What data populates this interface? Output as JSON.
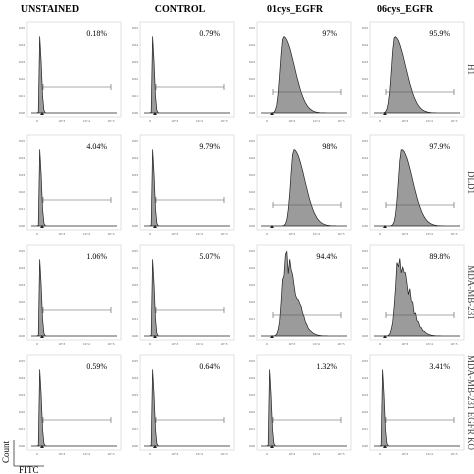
{
  "chart_data": {
    "type": "histogram-grid",
    "columns": [
      "UNSTAINED",
      "CONTROL",
      "01cys_EGFR",
      "06cys_EGFR"
    ],
    "rows": [
      {
        "label": "H1",
        "values": [
          "0.18%",
          "0.79%",
          "97%",
          "95.9%"
        ]
      },
      {
        "label": "DLD1",
        "values": [
          "4.04%",
          "9.79%",
          "98%",
          "97.9%"
        ]
      },
      {
        "label": "MDA-MB-231",
        "values": [
          "1.06%",
          "5.07%",
          "94.4%",
          "89.8%"
        ]
      },
      {
        "label": "MDA-MB-231 EGFR KO",
        "values": [
          "0.59%",
          "0.64%",
          "1.32%",
          "3.41%"
        ]
      }
    ],
    "peak_positions": [
      [
        0.1,
        0.1,
        0.26,
        0.24
      ],
      [
        0.1,
        0.1,
        0.38,
        0.32
      ],
      [
        0.1,
        0.1,
        0.28,
        0.28
      ],
      [
        0.1,
        0.1,
        0.1,
        0.1
      ]
    ],
    "ylabel": "Count",
    "xlabel": "FITC",
    "y_ticks": [
      "0.00",
      "0.01",
      "0.02",
      "0.03",
      "0.04",
      "0.05"
    ],
    "x_ticks": [
      "0",
      "10^3",
      "10^4",
      "10^5"
    ]
  }
}
